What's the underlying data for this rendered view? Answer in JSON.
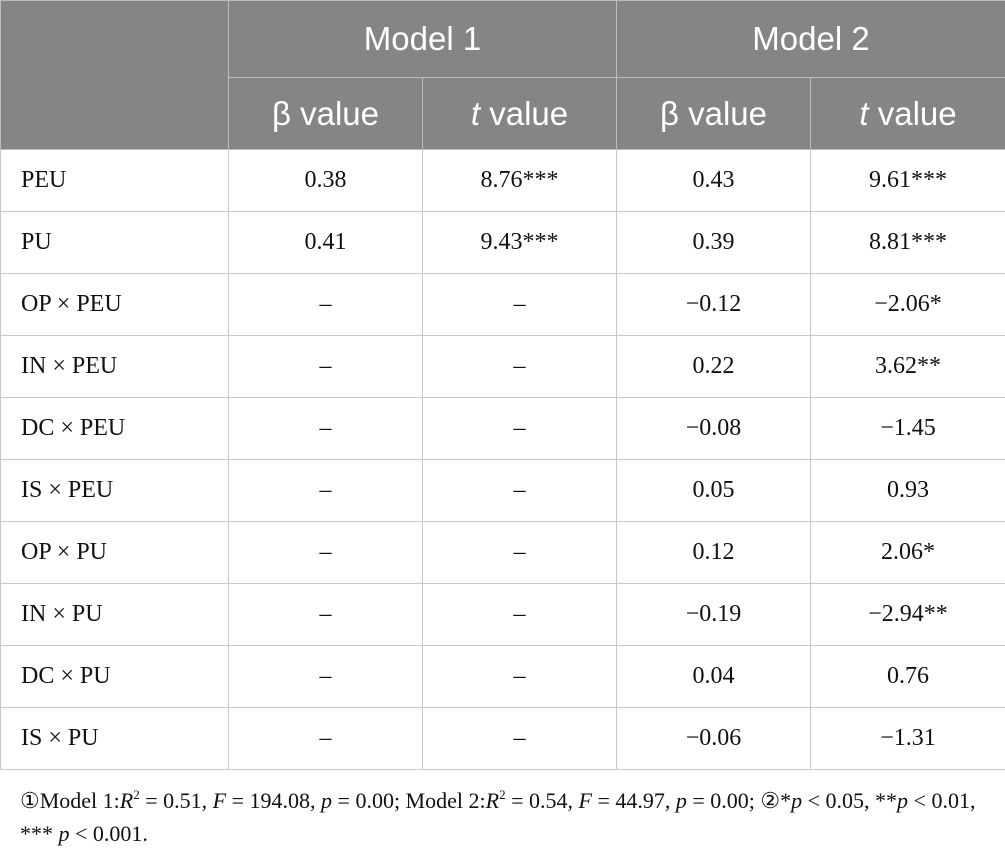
{
  "table": {
    "model_headers": [
      "Model 1",
      "Model 2"
    ],
    "sub_headers": [
      [
        "β value"
      ],
      [
        "t",
        " value"
      ],
      [
        "β value"
      ],
      [
        "t",
        " value"
      ]
    ],
    "rows": [
      [
        "PEU",
        "0.38",
        "8.76***",
        "0.43",
        "9.61***"
      ],
      [
        "PU",
        "0.41",
        "9.43***",
        "0.39",
        "8.81***"
      ],
      [
        "OP × PEU",
        "–",
        "–",
        "−0.12",
        "−2.06*"
      ],
      [
        "IN × PEU",
        "–",
        "–",
        "0.22",
        "3.62**"
      ],
      [
        "DC × PEU",
        "–",
        "–",
        "−0.08",
        "−1.45"
      ],
      [
        "IS × PEU",
        "–",
        "–",
        "0.05",
        "0.93"
      ],
      [
        "OP × PU",
        "–",
        "–",
        "0.12",
        "2.06*"
      ],
      [
        "IN × PU",
        "–",
        "–",
        "−0.19",
        "−2.94**"
      ],
      [
        "DC × PU",
        "–",
        "–",
        "0.04",
        "0.76"
      ],
      [
        "IS × PU",
        "–",
        "–",
        "−0.06",
        "−1.31"
      ]
    ]
  },
  "footnote": [
    "①Model 1:",
    "R",
    "2",
    " = 0.51, ",
    "F",
    " = 194.08, ",
    "p",
    " = 0.00; Model 2:",
    "R",
    "2",
    " = 0.54, ",
    "F",
    " = 44.97, ",
    "p",
    " = 0.00; ②*",
    "p",
    " < 0.05, **",
    "p",
    " < 0.01, *** ",
    "p",
    " < 0.001."
  ]
}
